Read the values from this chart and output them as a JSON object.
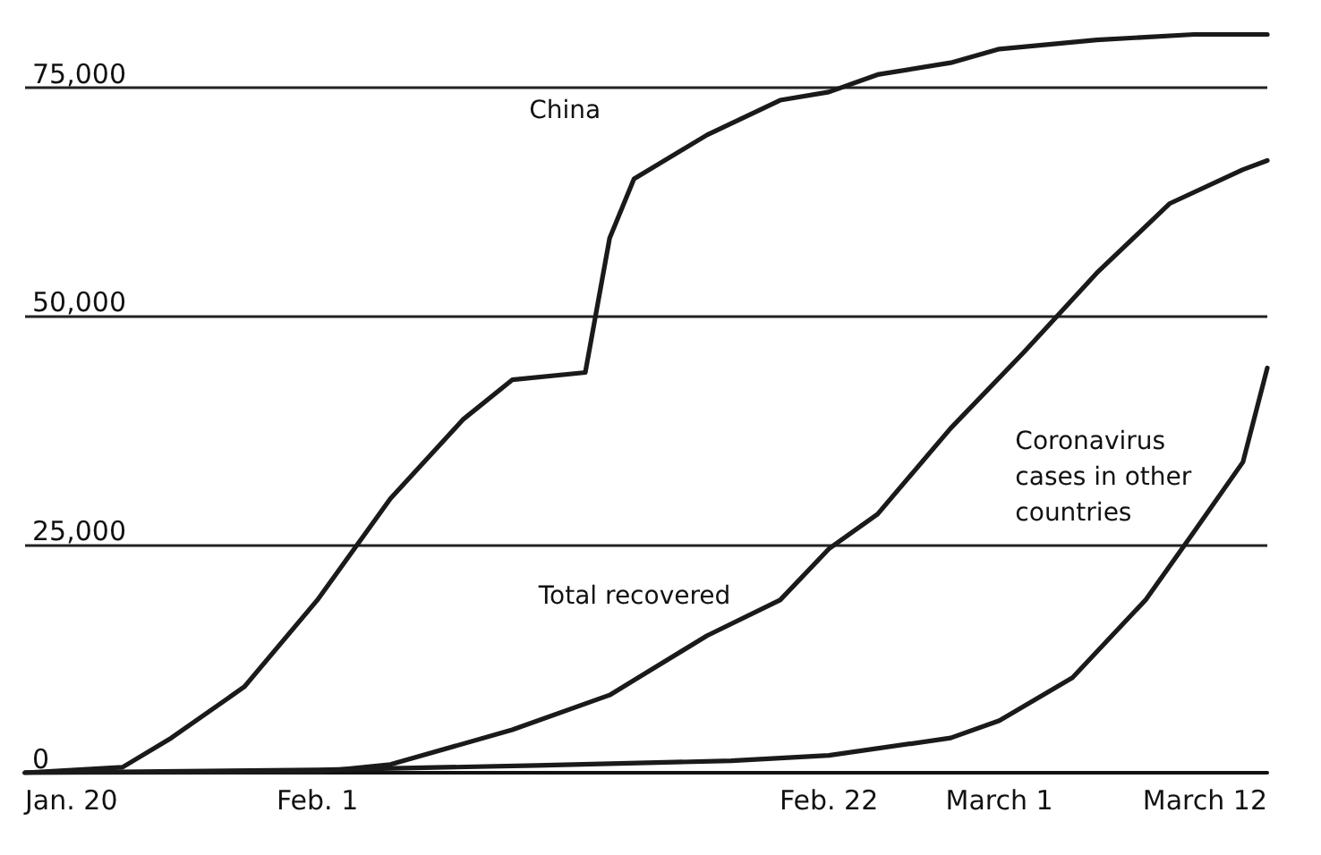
{
  "chart_data": {
    "type": "line",
    "xlim": [
      "--01-20",
      "--03-12"
    ],
    "xticks": [
      {
        "value": "--01-20",
        "label": "Jan. 20"
      },
      {
        "value": "--02-01",
        "label": "Feb. 1"
      },
      {
        "value": "--02-22",
        "label": "Feb. 22"
      },
      {
        "value": "--03-01",
        "label": "March 1"
      },
      {
        "value": "--03-12",
        "label": "March 12"
      }
    ],
    "ylim": [
      0,
      83000
    ],
    "yticks": [
      0,
      {
        "value": 25000,
        "label": "25,000"
      },
      {
        "value": 50000,
        "label": "50,000"
      },
      {
        "value": 75000,
        "label": "75,000"
      }
    ],
    "grid": "y",
    "marker": "none",
    "line_style": "solid",
    "legend": false,
    "series": [
      {
        "name": "China",
        "color": "#1a1a1a",
        "x": [
          "--01-20",
          "--01-24",
          "--01-26",
          "--01-29",
          "--02-01",
          "--02-04",
          "--02-07",
          "--02-09",
          "--02-12",
          "--02-13",
          "--02-14",
          "--02-17",
          "--02-20",
          "--02-22",
          "--02-24",
          "--02-27",
          "--03-01",
          "--03-05",
          "--03-09",
          "--03-12"
        ],
        "values": [
          0,
          600,
          3800,
          9400,
          18900,
          30000,
          38700,
          43000,
          43800,
          58500,
          65000,
          69800,
          73600,
          74500,
          76400,
          77700,
          79200,
          80200,
          80800,
          80800
        ]
      },
      {
        "name": "Total recovered",
        "color": "#1a1a1a",
        "x": [
          "--01-20",
          "--02-01",
          "--02-04",
          "--02-09",
          "--02-13",
          "--02-17",
          "--02-20",
          "--02-22",
          "--02-24",
          "--02-27",
          "--03-02",
          "--03-05",
          "--03-08",
          "--03-11",
          "--03-12"
        ],
        "values": [
          0,
          100,
          900,
          4700,
          8500,
          15000,
          18900,
          24500,
          28300,
          37700,
          46000,
          54700,
          62300,
          66000,
          67000
        ]
      },
      {
        "name": "Coronavirus cases in other countries",
        "color": "#1a1a1a",
        "x": [
          "--01-20",
          "--02-01",
          "--02-10",
          "--02-18",
          "--02-22",
          "--02-27",
          "--03-01",
          "--03-04",
          "--03-07",
          "--03-09",
          "--03-11",
          "--03-12"
        ],
        "values": [
          0,
          300,
          800,
          1300,
          1900,
          3800,
          5700,
          10400,
          18900,
          26400,
          34000,
          44300
        ]
      }
    ]
  }
}
